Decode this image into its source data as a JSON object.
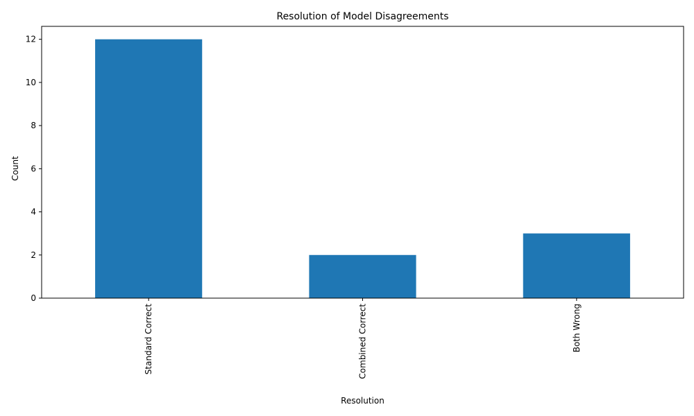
{
  "chart_data": {
    "type": "bar",
    "title": "Resolution of Model Disagreements",
    "xlabel": "Resolution",
    "ylabel": "Count",
    "categories": [
      "Standard Correct",
      "Combined Correct",
      "Both Wrong"
    ],
    "values": [
      12,
      2,
      3
    ],
    "ylim": [
      0,
      12.6
    ],
    "yticks": [
      0,
      2,
      4,
      6,
      8,
      10,
      12
    ],
    "bar_color": "#1f77b4",
    "grid": false,
    "legend": "none",
    "x_tick_rotation": "vertical"
  }
}
